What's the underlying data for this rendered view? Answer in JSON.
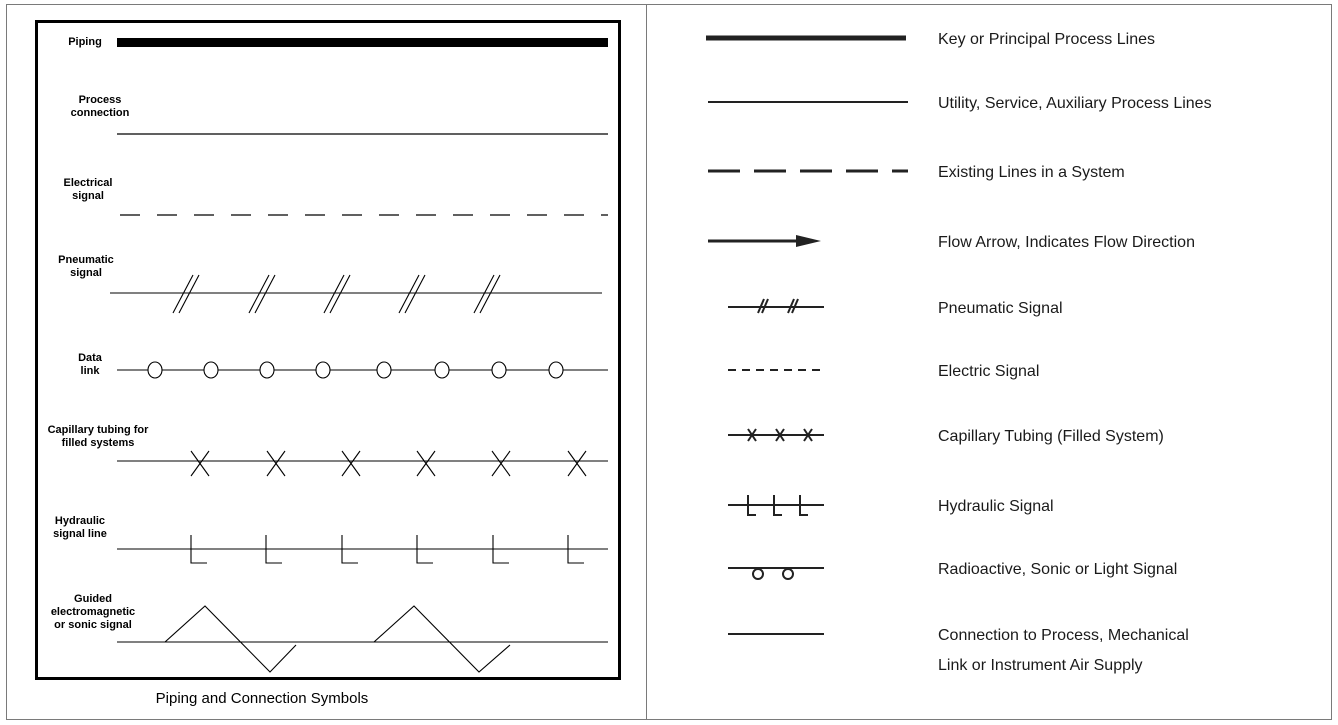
{
  "left_panel": {
    "labels": {
      "piping": "Piping",
      "process_1": "Process",
      "process_2": "connection",
      "electrical_1": "Electrical",
      "electrical_2": "signal",
      "pneumatic_1": "Pneumatic",
      "pneumatic_2": "signal",
      "data_1": "Data",
      "data_2": "link",
      "capillary_1": "Capillary tubing for",
      "capillary_2": "filled systems",
      "hydraulic_1": "Hydraulic",
      "hydraulic_2": "signal line",
      "guided_1": "Guided",
      "guided_2": "electromagnetic",
      "guided_3": "or sonic signal"
    },
    "caption": "Piping and Connection Symbols"
  },
  "right_panel": {
    "legend": [
      "Key or Principal Process Lines",
      "Utility, Service, Auxiliary Process Lines",
      "Existing Lines in a System",
      "Flow Arrow, Indicates Flow Direction",
      "Pneumatic Signal",
      "Electric Signal",
      "Capillary Tubing (Filled System)",
      "Hydraulic Signal",
      "Radioactive, Sonic or Light Signal",
      "Connection to Process, Mechanical",
      "Link or Instrument Air Supply"
    ]
  },
  "colors": {
    "line": "#000000",
    "border": "#7a7a7a"
  }
}
